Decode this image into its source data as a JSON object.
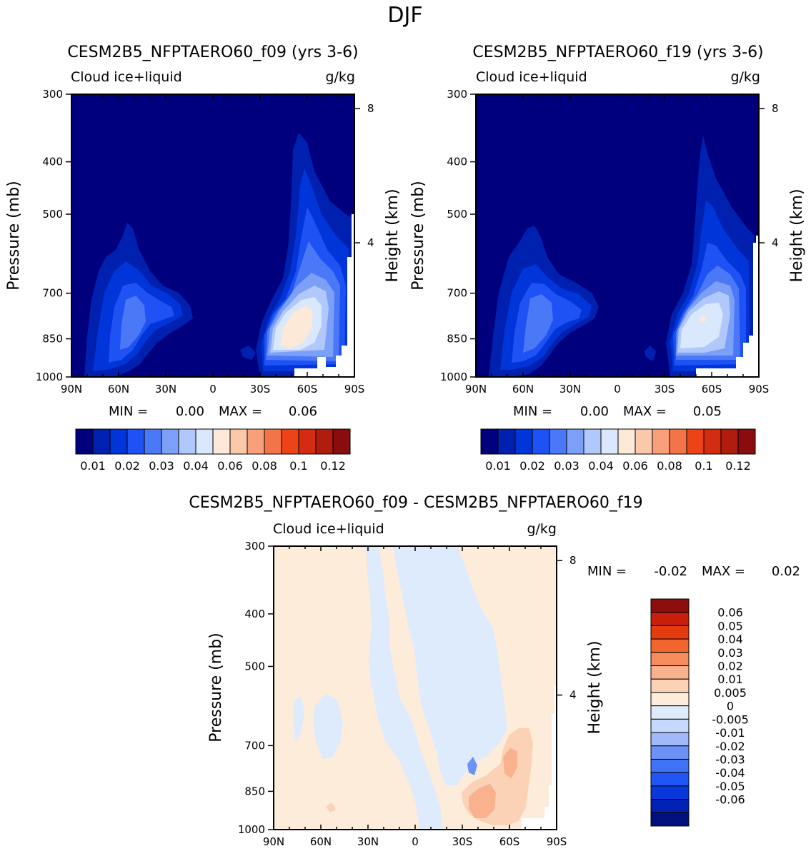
{
  "figure_title": "DJF",
  "colors": {
    "abs_scale": [
      "#00007f",
      "#0020b0",
      "#0035d9",
      "#1f52f5",
      "#4a78f7",
      "#7c9ff8",
      "#b0c8fb",
      "#d9e8fd",
      "#fde9d8",
      "#fbc8aa",
      "#f9a07a",
      "#f4744a",
      "#ec4317",
      "#d42c10",
      "#b01d0c",
      "#8a0c0c"
    ],
    "diff_scale": [
      "#00107f",
      "#0021b3",
      "#0837dd",
      "#1e55f4",
      "#3f73f7",
      "#6c92f8",
      "#9fb9fa",
      "#c6d9fc",
      "#deebfd",
      "#fdecda",
      "#fcd2b6",
      "#fab28e",
      "#f78c5e",
      "#f2652e",
      "#e33a0e",
      "#c81f0a",
      "#8d0c0c"
    ]
  },
  "chart_data": [
    {
      "id": "panel-f09",
      "type": "contour",
      "title": "CESM2B5_NFPTAERO60_f09 (yrs 3-6)",
      "left_label": "Cloud ice+liquid",
      "units": "g/kg",
      "ylabel": "Pressure (mb)",
      "ylabel_right": "Height (km)",
      "x_ticks": [
        "90N",
        "60N",
        "30N",
        "0",
        "30S",
        "60S",
        "90S"
      ],
      "y_ticks": [
        "300",
        "400",
        "500",
        "700",
        "850",
        "1000"
      ],
      "y_right_ticks": [
        "8",
        "4"
      ],
      "stats": {
        "min_label": "MIN =",
        "min_value": "0.00",
        "max_label": "MAX =",
        "max_value": "0.06"
      },
      "min": 0.0,
      "max": 0.06,
      "contour_levels": [
        0.005,
        0.01,
        0.015,
        0.02,
        0.025,
        0.03,
        0.035,
        0.04,
        0.05,
        0.06,
        0.07,
        0.08,
        0.09,
        0.1,
        0.11,
        0.12
      ],
      "colorbar_labels": [
        "0.01",
        "0.02",
        "0.03",
        "0.04",
        "0.06",
        "0.08",
        "0.1",
        "0.12"
      ]
    },
    {
      "id": "panel-f19",
      "type": "contour",
      "title": "CESM2B5_NFPTAERO60_f19 (yrs 3-6)",
      "left_label": "Cloud ice+liquid",
      "units": "g/kg",
      "ylabel": "Pressure (mb)",
      "ylabel_right": "Height (km)",
      "x_ticks": [
        "90N",
        "60N",
        "30N",
        "0",
        "30S",
        "60S",
        "90S"
      ],
      "y_ticks": [
        "300",
        "400",
        "500",
        "700",
        "850",
        "1000"
      ],
      "y_right_ticks": [
        "8",
        "4"
      ],
      "stats": {
        "min_label": "MIN =",
        "min_value": "0.00",
        "max_label": "MAX =",
        "max_value": "0.05"
      },
      "min": 0.0,
      "max": 0.05,
      "contour_levels": [
        0.005,
        0.01,
        0.015,
        0.02,
        0.025,
        0.03,
        0.035,
        0.04,
        0.05,
        0.06,
        0.07,
        0.08,
        0.09,
        0.1,
        0.11,
        0.12
      ],
      "colorbar_labels": [
        "0.01",
        "0.02",
        "0.03",
        "0.04",
        "0.06",
        "0.08",
        "0.1",
        "0.12"
      ]
    },
    {
      "id": "panel-diff",
      "type": "contour",
      "title": "CESM2B5_NFPTAERO60_f09 - CESM2B5_NFPTAERO60_f19",
      "left_label": "Cloud ice+liquid",
      "units": "g/kg",
      "ylabel": "Pressure (mb)",
      "ylabel_right": "Height (km)",
      "x_ticks": [
        "90N",
        "60N",
        "30N",
        "0",
        "30S",
        "60S",
        "90S"
      ],
      "y_ticks": [
        "300",
        "400",
        "500",
        "700",
        "850",
        "1000"
      ],
      "y_right_ticks": [
        "8",
        "4"
      ],
      "stats": {
        "min_label": "MIN =",
        "min_value": "-0.02",
        "max_label": "MAX =",
        "max_value": "0.02"
      },
      "min": -0.02,
      "max": 0.02,
      "contour_levels": [
        -0.06,
        -0.05,
        -0.04,
        -0.03,
        -0.02,
        -0.01,
        -0.005,
        0,
        0.005,
        0.01,
        0.02,
        0.03,
        0.04,
        0.05,
        0.06
      ],
      "colorbar_labels": [
        "0.06",
        "0.05",
        "0.04",
        "0.03",
        "0.02",
        "0.01",
        "0.005",
        "0",
        "-0.005",
        "-0.01",
        "-0.02",
        "-0.03",
        "-0.04",
        "-0.05",
        "-0.06"
      ]
    }
  ]
}
